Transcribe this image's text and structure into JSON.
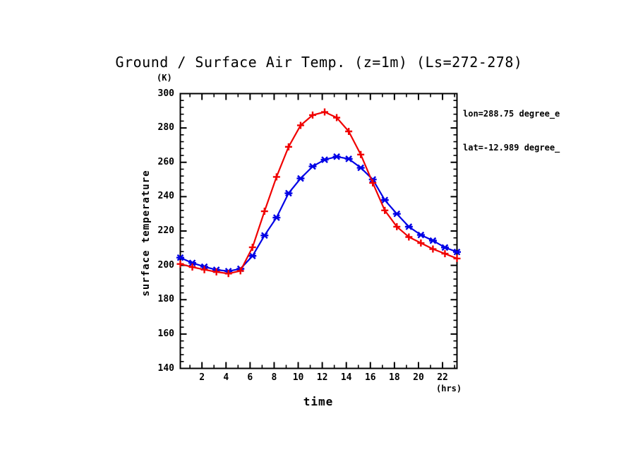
{
  "page": {
    "background": "#ffffff"
  },
  "title": "Ground / Surface Air Temp. (z=1m) (Ls=272-278)",
  "annotations": {
    "line1": "lon=288.75 degree_e",
    "line2": "lat=-12.989 degree_"
  },
  "chart_data": {
    "type": "line",
    "title": "Ground / Surface Air Temp. (z=1m) (Ls=272-278)",
    "xlabel": "time",
    "xunit": "(hrs)",
    "ylabel": "surface temperature",
    "yunit": "(K)",
    "xlim": [
      0.2,
      23.2
    ],
    "ylim": [
      140,
      300
    ],
    "x_ticks": [
      2,
      4,
      6,
      8,
      10,
      12,
      14,
      16,
      18,
      20,
      22
    ],
    "y_ticks": [
      140,
      160,
      180,
      200,
      220,
      240,
      260,
      280,
      300
    ],
    "x_minor_step": 1,
    "y_minor_step": 4,
    "grid": false,
    "legend_position": "none",
    "frame_color": "#000000",
    "x": [
      0.2,
      1.2,
      2.2,
      3.2,
      4.2,
      5.2,
      6.2,
      7.2,
      8.2,
      9.2,
      10.2,
      11.2,
      12.2,
      13.2,
      14.2,
      15.2,
      16.2,
      17.2,
      18.2,
      19.2,
      20.2,
      21.2,
      22.2,
      23.2
    ],
    "series": [
      {
        "name": "blue-series",
        "color": "#0000e6",
        "marker": "star",
        "values": [
          204.5,
          201.4,
          199.2,
          197.4,
          196.6,
          198.0,
          205.5,
          217.4,
          227.8,
          242.0,
          250.6,
          257.6,
          261.5,
          263.3,
          262.0,
          256.8,
          250.0,
          238.0,
          230.0,
          222.5,
          217.7,
          214.4,
          210.4,
          207.8
        ]
      },
      {
        "name": "red-series",
        "color": "#f00000",
        "marker": "plus",
        "values": [
          200.8,
          199.0,
          197.5,
          196.2,
          195.2,
          196.8,
          210.5,
          231.5,
          251.5,
          269.0,
          281.5,
          287.5,
          289.3,
          286.0,
          278.0,
          264.5,
          248.0,
          232.0,
          222.5,
          216.5,
          213.0,
          209.5,
          206.8,
          204.0
        ]
      }
    ]
  }
}
